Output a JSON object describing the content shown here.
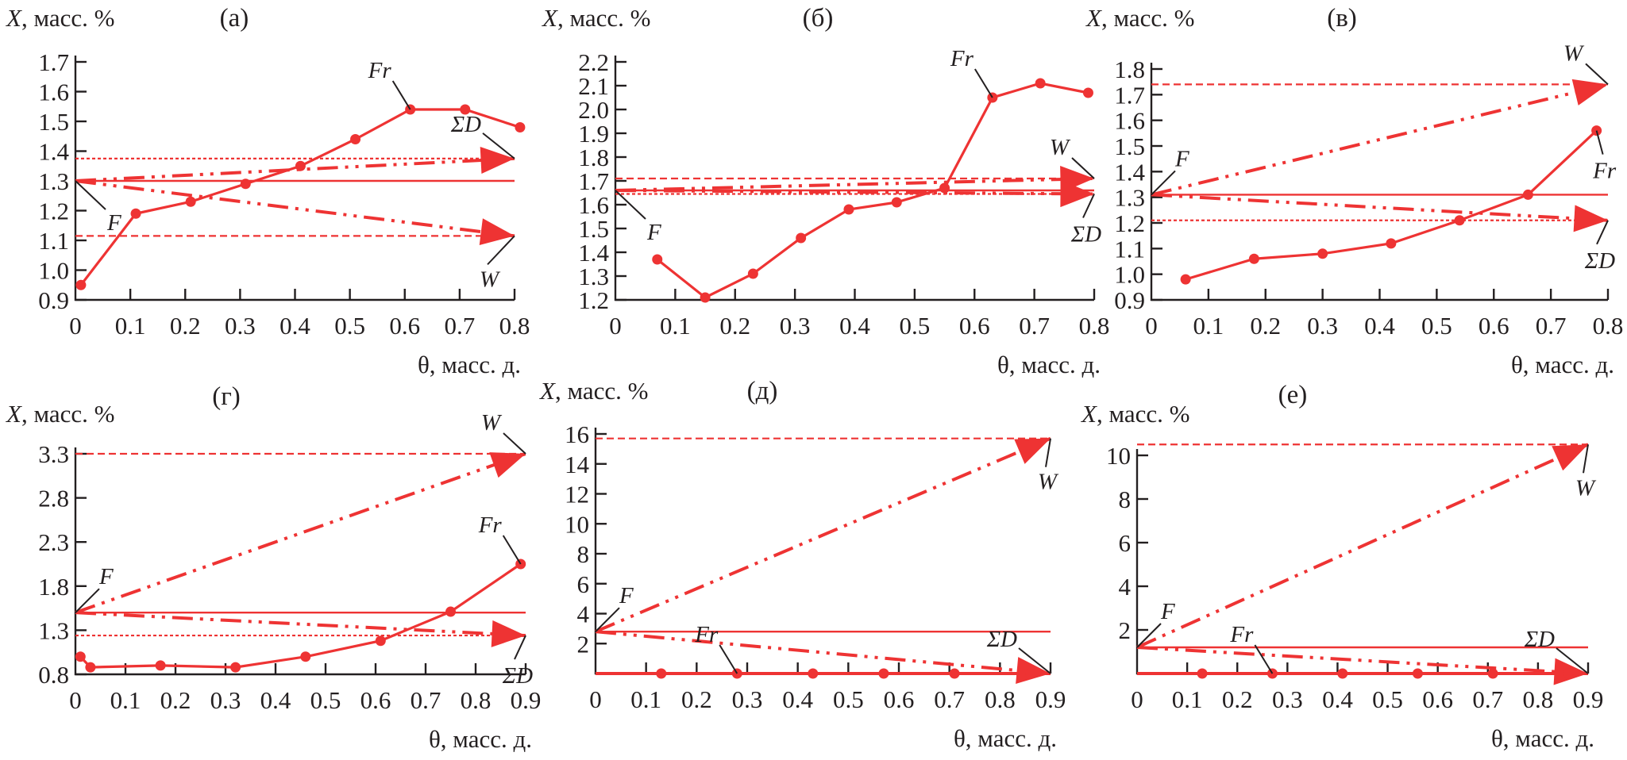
{
  "figure": {
    "colors": {
      "series": "#ee3333",
      "axis": "#231f20"
    }
  },
  "chart_data": [
    {
      "type": "line",
      "panel": "(а)",
      "ylabel": "X, масс. %",
      "xlabel": "θ, масс. д.",
      "xlim": [
        0,
        0.8
      ],
      "ylim": [
        0.9,
        1.7
      ],
      "xticks": [
        "0",
        "0.1",
        "0.2",
        "0.3",
        "0.4",
        "0.5",
        "0.6",
        "0.7",
        "0.8"
      ],
      "yticks": [
        "0.9",
        "1.0",
        "1.1",
        "1.2",
        "1.3",
        "1.4",
        "1.5",
        "1.6",
        "1.7"
      ],
      "series": [
        {
          "name": "Fr",
          "style": "solid-markers",
          "x": [
            0.01,
            0.11,
            0.21,
            0.31,
            0.41,
            0.51,
            0.61,
            0.71,
            0.81
          ],
          "y": [
            0.95,
            1.19,
            1.23,
            1.29,
            1.35,
            1.44,
            1.54,
            1.54,
            1.48
          ]
        },
        {
          "name": "F",
          "style": "solid",
          "value": 1.3
        },
        {
          "name": "ΣD",
          "style": "dashed-limit+arrow",
          "value": 1.375
        },
        {
          "name": "W",
          "style": "dashed-limit+arrow",
          "value": 1.115
        }
      ],
      "labels": {
        "Fr": "Fr",
        "F": "F",
        "SD": "ΣD",
        "W": "W"
      }
    },
    {
      "type": "line",
      "panel": "(б)",
      "ylabel": "X, масс. %",
      "xlabel": "θ, масс. д.",
      "xlim": [
        0,
        0.8
      ],
      "ylim": [
        1.2,
        2.2
      ],
      "xticks": [
        "0",
        "0.1",
        "0.2",
        "0.3",
        "0.4",
        "0.5",
        "0.6",
        "0.7",
        "0.8"
      ],
      "yticks": [
        "1.2",
        "1.3",
        "1.4",
        "1.5",
        "1.6",
        "1.7",
        "1.8",
        "1.9",
        "2.0",
        "2.1",
        "2.2"
      ],
      "series": [
        {
          "name": "Fr",
          "style": "solid-markers",
          "x": [
            0.07,
            0.15,
            0.23,
            0.31,
            0.39,
            0.47,
            0.55,
            0.63,
            0.71,
            0.79
          ],
          "y": [
            1.37,
            1.21,
            1.31,
            1.46,
            1.58,
            1.61,
            1.67,
            2.05,
            2.11,
            2.07
          ]
        },
        {
          "name": "F",
          "style": "solid",
          "value": 1.66
        },
        {
          "name": "W",
          "style": "dashed-limit+arrow",
          "value": 1.71
        },
        {
          "name": "ΣD",
          "style": "dashed-limit+arrow",
          "value": 1.645
        }
      ],
      "labels": {
        "Fr": "Fr",
        "F": "F",
        "SD": "ΣD",
        "W": "W"
      }
    },
    {
      "type": "line",
      "panel": "(в)",
      "ylabel": "X, масс. %",
      "xlabel": "θ, масс. д.",
      "xlim": [
        0,
        0.8
      ],
      "ylim": [
        0.9,
        1.8
      ],
      "xticks": [
        "0",
        "0.1",
        "0.2",
        "0.3",
        "0.4",
        "0.5",
        "0.6",
        "0.7",
        "0.8"
      ],
      "yticks": [
        "0.9",
        "1.0",
        "1.1",
        "1.2",
        "1.3",
        "1.4",
        "1.5",
        "1.6",
        "1.7",
        "1.8"
      ],
      "series": [
        {
          "name": "Fr",
          "style": "solid-markers",
          "x": [
            0.06,
            0.18,
            0.3,
            0.42,
            0.54,
            0.66,
            0.78
          ],
          "y": [
            0.98,
            1.06,
            1.08,
            1.12,
            1.21,
            1.31,
            1.56
          ]
        },
        {
          "name": "F",
          "style": "solid",
          "value": 1.31
        },
        {
          "name": "W",
          "style": "dashed-limit+arrow",
          "value": 1.74
        },
        {
          "name": "ΣD",
          "style": "dashed-limit+arrow",
          "value": 1.21
        }
      ],
      "labels": {
        "Fr": "Fr",
        "F": "F",
        "SD": "ΣD",
        "W": "W"
      }
    },
    {
      "type": "line",
      "panel": "(г)",
      "ylabel": "X, масс. %",
      "xlabel": "θ, масс. д.",
      "xlim": [
        0,
        0.9
      ],
      "ylim": [
        0.8,
        3.3
      ],
      "xticks": [
        "0",
        "0.1",
        "0.2",
        "0.3",
        "0.4",
        "0.5",
        "0.6",
        "0.7",
        "0.8",
        "0.9"
      ],
      "yticks": [
        "0.8",
        "1.3",
        "1.8",
        "2.3",
        "2.8",
        "3.3"
      ],
      "series": [
        {
          "name": "Fr",
          "style": "solid-markers",
          "x": [
            0.01,
            0.03,
            0.17,
            0.32,
            0.46,
            0.61,
            0.75,
            0.89
          ],
          "y": [
            1.0,
            0.88,
            0.9,
            0.88,
            1.0,
            1.18,
            1.51,
            2.05
          ]
        },
        {
          "name": "F",
          "style": "solid",
          "value": 1.5
        },
        {
          "name": "W",
          "style": "dashed-limit+arrow",
          "value": 3.3
        },
        {
          "name": "ΣD",
          "style": "dashed-limit+arrow",
          "value": 1.24
        }
      ],
      "labels": {
        "Fr": "Fr",
        "F": "F",
        "SD": "ΣD",
        "W": "W"
      }
    },
    {
      "type": "line",
      "panel": "(д)",
      "ylabel": "X, масс. %",
      "xlabel": "θ, масс. д.",
      "xlim": [
        0,
        0.9
      ],
      "ylim": [
        0,
        16
      ],
      "xticks": [
        "0",
        "0.1",
        "0.2",
        "0.3",
        "0.4",
        "0.5",
        "0.6",
        "0.7",
        "0.8",
        "0.9"
      ],
      "yticks": [
        "2",
        "4",
        "6",
        "8",
        "10",
        "12",
        "14",
        "16"
      ],
      "series": [
        {
          "name": "Fr",
          "style": "solid-markers",
          "x": [
            0.13,
            0.28,
            0.43,
            0.57,
            0.71,
            0.86
          ],
          "y": [
            0,
            0,
            0,
            0,
            0,
            0
          ]
        },
        {
          "name": "F",
          "style": "solid",
          "value": 2.8
        },
        {
          "name": "W",
          "style": "dashed-limit+arrow",
          "value": 15.7
        },
        {
          "name": "ΣD",
          "style": "dashed-limit+arrow",
          "value": 0.0
        }
      ],
      "labels": {
        "Fr": "Fr",
        "F": "F",
        "SD": "ΣD",
        "W": "W"
      }
    },
    {
      "type": "line",
      "panel": "(е)",
      "ylabel": "X, масс. %",
      "xlabel": "θ, масс. д.",
      "xlim": [
        0,
        0.9
      ],
      "ylim": [
        0,
        10
      ],
      "xticks": [
        "0",
        "0.1",
        "0.2",
        "0.3",
        "0.4",
        "0.5",
        "0.6",
        "0.7",
        "0.8",
        "0.9"
      ],
      "yticks": [
        "2",
        "4",
        "6",
        "8",
        "10"
      ],
      "series": [
        {
          "name": "Fr",
          "style": "solid-markers",
          "x": [
            0.13,
            0.27,
            0.41,
            0.56,
            0.71,
            0.86
          ],
          "y": [
            0,
            0,
            0,
            0,
            0,
            0
          ]
        },
        {
          "name": "F",
          "style": "solid",
          "value": 1.2
        },
        {
          "name": "W",
          "style": "dashed-limit+arrow",
          "value": 10.5
        },
        {
          "name": "ΣD",
          "style": "dashed-limit+arrow",
          "value": 0.0
        }
      ],
      "labels": {
        "Fr": "Fr",
        "F": "F",
        "SD": "ΣD",
        "W": "W"
      }
    }
  ]
}
